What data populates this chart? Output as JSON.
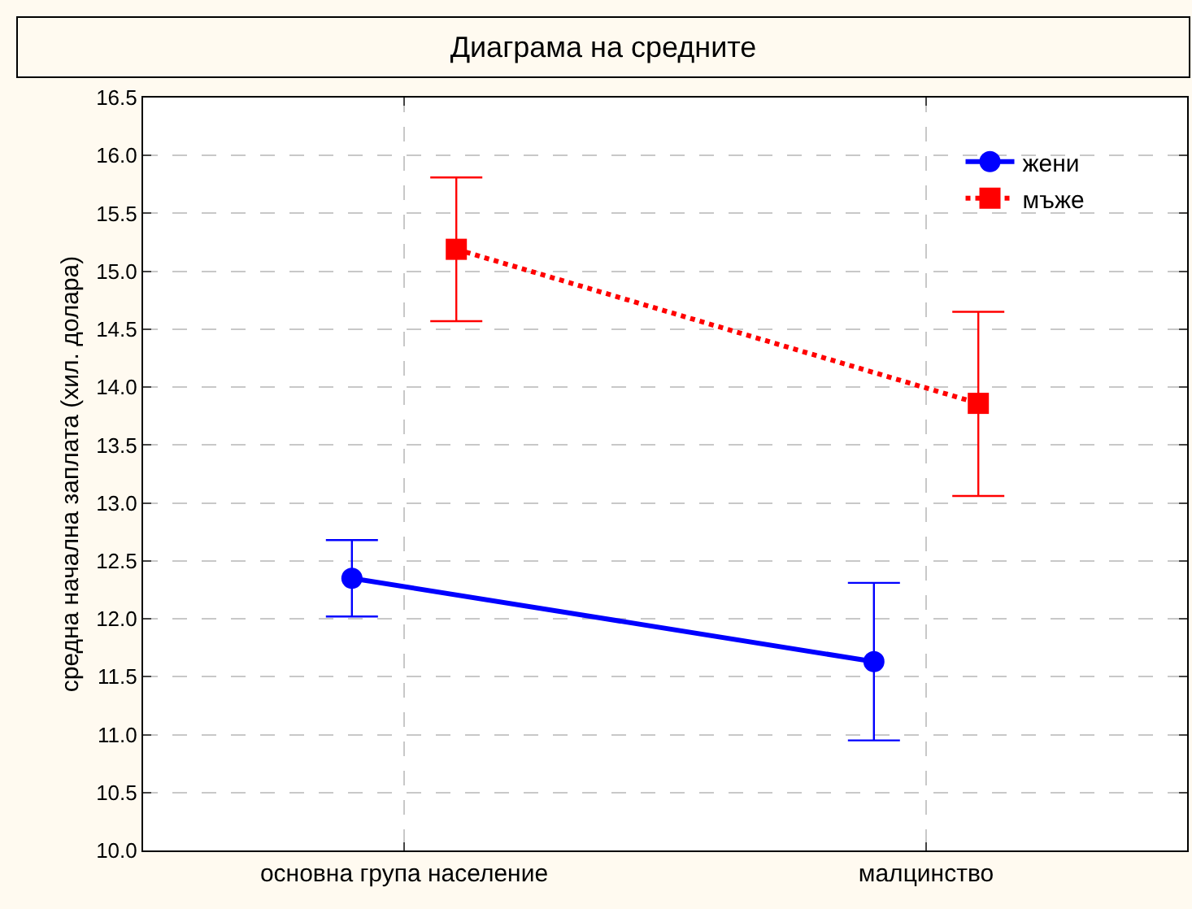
{
  "chart_data": {
    "type": "line",
    "title": "Диаграма на средните",
    "ylabel": "средна начална заплата (хил. долара)",
    "categories": [
      "основна група население",
      "малцинство"
    ],
    "series": [
      {
        "name": "жени",
        "color": "#0000ff",
        "marker": "circle",
        "line_style": "solid",
        "values": [
          12.35,
          11.63
        ],
        "errors": [
          [
            12.02,
            12.68
          ],
          [
            10.95,
            12.31
          ]
        ]
      },
      {
        "name": "мъже",
        "color": "#ff0000",
        "marker": "square",
        "line_style": "dotted",
        "values": [
          15.19,
          13.86
        ],
        "errors": [
          [
            14.57,
            15.81
          ],
          [
            13.06,
            14.65
          ]
        ]
      }
    ],
    "ylim": [
      10,
      16.5
    ],
    "yticks": [
      {
        "value": 10,
        "label": "10.0"
      },
      10.5,
      {
        "value": 11,
        "label": "11.0"
      },
      11.5,
      {
        "value": 12,
        "label": "12.0"
      },
      12.5,
      {
        "value": 13,
        "label": "13.0"
      },
      13.5,
      {
        "value": 14,
        "label": "14.0"
      },
      14.5,
      {
        "value": 15,
        "label": "15.0"
      },
      15.5,
      {
        "value": 16,
        "label": "16.0"
      },
      16.5
    ],
    "grid": true,
    "legend": "top right"
  }
}
